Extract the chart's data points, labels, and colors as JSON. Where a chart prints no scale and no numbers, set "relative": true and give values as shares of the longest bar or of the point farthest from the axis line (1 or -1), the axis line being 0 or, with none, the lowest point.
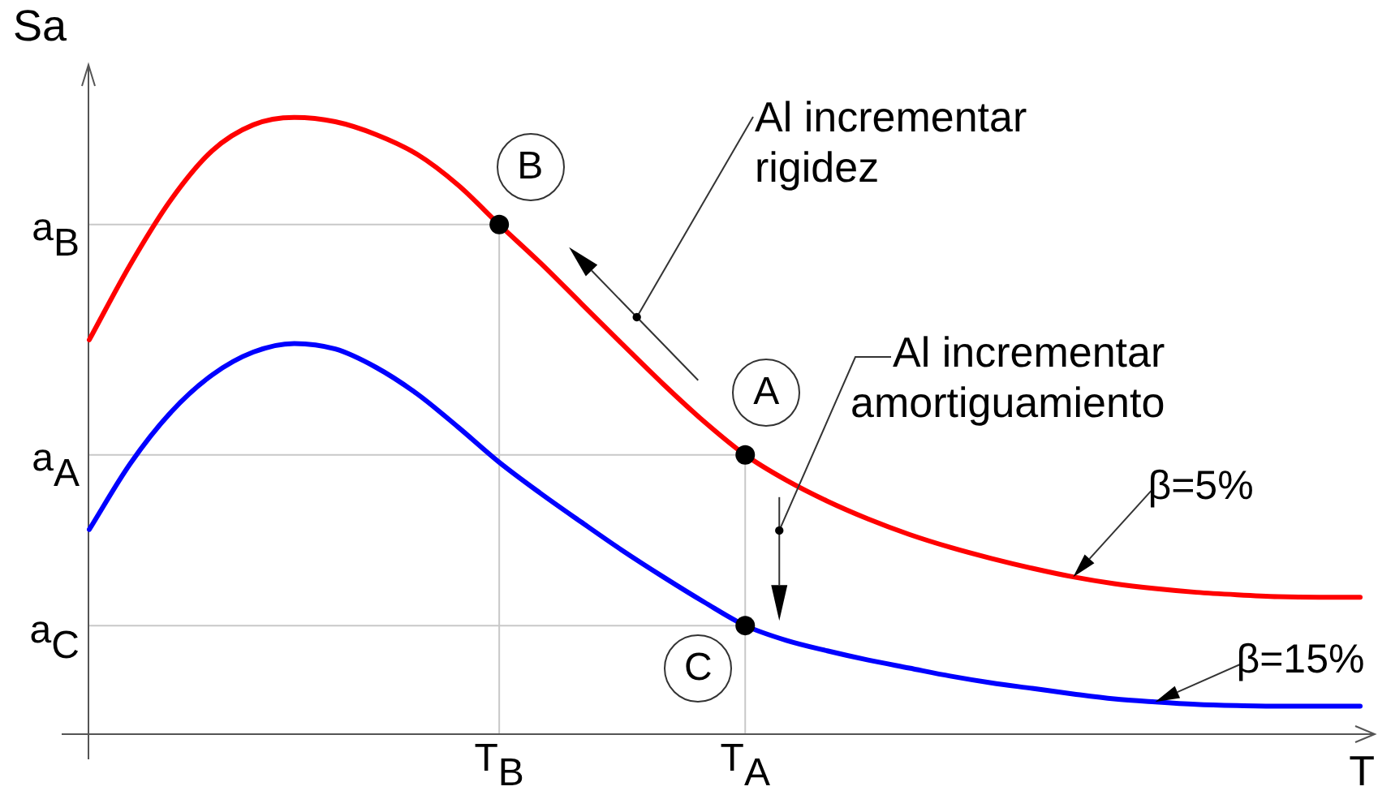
{
  "chart_data": {
    "type": "line",
    "relative": true,
    "xlabel": "T",
    "ylabel": "Sa",
    "categories": [
      null,
      null,
      null,
      null,
      null,
      null,
      null,
      null,
      null,
      null,
      "T$_{B}$",
      null,
      null,
      null,
      null,
      null,
      "T$_{A}$",
      null,
      null,
      null,
      null,
      null,
      null,
      null,
      null,
      null,
      null,
      null,
      null,
      null,
      null,
      null
    ],
    "series": [
      {
        "name": "β=5%",
        "color": "#ff0000",
        "values": [
          0.639,
          0.761,
          0.867,
          0.946,
          0.988,
          1,
          0.993,
          0.972,
          0.94,
          0.89,
          0.826,
          0.764,
          0.698,
          0.632,
          0.567,
          0.506,
          0.452,
          0.411,
          0.377,
          0.348,
          0.323,
          0.302,
          0.284,
          0.268,
          0.254,
          0.243,
          0.235,
          0.229,
          0.225,
          0.222,
          0.221,
          0.221
        ]
      },
      {
        "name": "β=15%",
        "color": "#0000ff",
        "values": [
          0.331,
          0.438,
          0.522,
          0.582,
          0.619,
          0.633,
          0.624,
          0.594,
          0.551,
          0.497,
          0.44,
          0.39,
          0.343,
          0.297,
          0.254,
          0.213,
          0.175,
          0.151,
          0.134,
          0.119,
          0.106,
          0.093,
          0.082,
          0.073,
          0.064,
          0.056,
          0.051,
          0.047,
          0.045,
          0.044,
          0.044,
          0.044
        ]
      },
      {
        "type": "line",
        "color": "#c8c8c8",
        "x": [
          "T$_{B}$",
          "T$_{B}$"
        ],
        "values": [
          0,
          0.826
        ]
      },
      {
        "type": "line",
        "color": "#c8c8c8",
        "x": [
          "T$_{A}$",
          "T$_{A}$"
        ],
        "values": [
          0,
          0.452
        ]
      },
      {
        "type": "scatter",
        "color": "#000000",
        "marker": "circle",
        "x": [
          "T$_{B}$",
          "T$_{A}$",
          "T$_{A}$"
        ],
        "values": [
          0.826,
          0.452,
          0.175
        ]
      }
    ],
    "ref_lines": [
      {
        "axis": "y",
        "value": 0.826,
        "label": "a$_{B}$",
        "color": "#c8c8c8"
      },
      {
        "axis": "y",
        "value": 0.452,
        "label": "a$_{A}$",
        "color": "#c8c8c8"
      },
      {
        "axis": "y",
        "value": 0.175,
        "label": "a$_{C}$",
        "color": "#c8c8c8"
      }
    ],
    "annotations": [
      {
        "text": "B",
        "x": "T$_{B}$",
        "y": 0.826
      },
      {
        "text": "A",
        "x": "T$_{A}$",
        "y": 0.452
      },
      {
        "text": "C",
        "x": "T$_{A}$",
        "y": 0.175
      },
      "Al incrementar rigidez",
      "Al incrementar amortiguamiento"
    ]
  }
}
